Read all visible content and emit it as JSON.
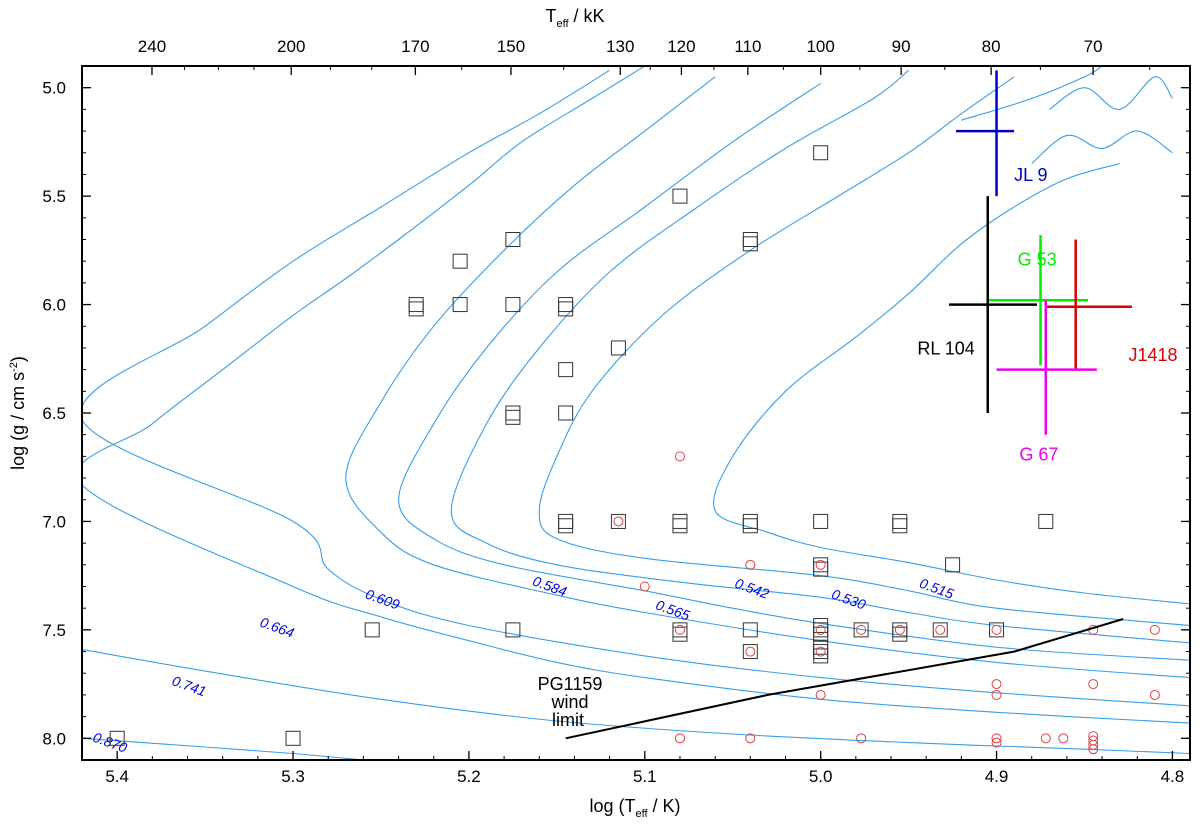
{
  "chart_data": {
    "type": "scatter",
    "title": "",
    "xlabel": "log (T",
    "xlabel_sub": "eff",
    "xlabel_tail": " / K)",
    "ylabel": "log (g / cm s",
    "ylabel_sup": "-2",
    "ylabel_tail": ")",
    "top_axis_label": "T",
    "top_axis_label_sub": "eff",
    "top_axis_label_tail": " / kK",
    "xlim": [
      5.42,
      4.79
    ],
    "ylim": [
      8.1,
      4.9
    ],
    "x_ticks": [
      5.4,
      5.3,
      5.2,
      5.1,
      5.0,
      4.9,
      4.8
    ],
    "x_tick_labels": [
      "5.4",
      "5.3",
      "5.2",
      "5.1",
      "5.0",
      "4.9",
      "4.8"
    ],
    "y_ticks": [
      5.0,
      5.5,
      6.0,
      6.5,
      7.0,
      7.5,
      8.0
    ],
    "y_tick_labels": [
      "5.0",
      "5.5",
      "6.0",
      "6.5",
      "7.0",
      "7.5",
      "8.0"
    ],
    "top_ticks_kK": [
      240,
      200,
      170,
      150,
      130,
      120,
      110,
      100,
      90,
      80,
      70
    ],
    "top_tick_labels": [
      "240",
      "200",
      "170",
      "150",
      "130",
      "120",
      "110",
      "100",
      "90",
      "80",
      "70"
    ],
    "track_color": "#3a9ee6",
    "tracks": [
      {
        "mass_label": "0.870",
        "label_at": [
          5.405,
          8.04
        ],
        "points": [
          [
            5.42,
            8.0
          ],
          [
            5.35,
            8.04
          ],
          [
            5.3,
            8.07
          ],
          [
            5.26,
            8.1
          ]
        ]
      },
      {
        "mass_label": "0.741",
        "label_at": [
          5.36,
          7.78
        ],
        "points": [
          [
            5.42,
            7.59
          ],
          [
            5.35,
            7.69
          ],
          [
            5.25,
            7.82
          ],
          [
            5.15,
            7.92
          ],
          [
            5.05,
            7.98
          ],
          [
            4.95,
            8.02
          ],
          [
            4.85,
            8.05
          ],
          [
            4.79,
            8.07
          ]
        ]
      },
      {
        "mass_label": "0.664",
        "label_at": [
          5.31,
          7.51
        ],
        "points": [
          [
            5.42,
            6.83
          ],
          [
            5.38,
            6.55
          ],
          [
            5.34,
            6.3
          ],
          [
            5.3,
            6.05
          ],
          [
            5.27,
            5.88
          ],
          [
            5.24,
            5.7
          ],
          [
            5.2,
            5.45
          ],
          [
            5.17,
            5.25
          ],
          [
            5.13,
            5.05
          ],
          [
            5.1,
            4.9
          ]
        ],
        "hook": [
          [
            5.34,
            7.1
          ],
          [
            5.3,
            7.3
          ],
          [
            5.25,
            7.44
          ],
          [
            5.2,
            7.55
          ],
          [
            5.15,
            7.65
          ],
          [
            5.1,
            7.72
          ],
          [
            5.0,
            7.82
          ],
          [
            4.9,
            7.88
          ],
          [
            4.79,
            7.93
          ]
        ]
      },
      {
        "mass_label": "0.609",
        "label_at": [
          5.25,
          7.38
        ],
        "points": [
          [
            5.42,
            6.53
          ],
          [
            5.35,
            6.1
          ],
          [
            5.3,
            5.8
          ],
          [
            5.25,
            5.55
          ],
          [
            5.2,
            5.3
          ],
          [
            5.16,
            5.12
          ],
          [
            5.12,
            4.92
          ]
        ],
        "hook": [
          [
            5.29,
            6.8
          ],
          [
            5.3,
            7.0
          ],
          [
            5.28,
            7.22
          ],
          [
            5.25,
            7.36
          ],
          [
            5.2,
            7.48
          ],
          [
            5.1,
            7.62
          ],
          [
            5.0,
            7.72
          ],
          [
            4.9,
            7.79
          ],
          [
            4.79,
            7.85
          ]
        ]
      },
      {
        "mass_label": "0.584",
        "label_at": [
          5.155,
          7.32
        ],
        "points": [
          [
            5.27,
            6.8
          ],
          [
            5.25,
            6.45
          ],
          [
            5.22,
            6.1
          ],
          [
            5.18,
            5.75
          ],
          [
            5.14,
            5.45
          ],
          [
            5.1,
            5.2
          ],
          [
            5.06,
            4.95
          ]
        ],
        "hook": [
          [
            5.27,
            6.8
          ],
          [
            5.25,
            7.05
          ],
          [
            5.22,
            7.2
          ],
          [
            5.15,
            7.34
          ],
          [
            5.1,
            7.42
          ],
          [
            5.0,
            7.55
          ],
          [
            4.9,
            7.65
          ],
          [
            4.79,
            7.72
          ]
        ]
      },
      {
        "mass_label": "0.565",
        "label_at": [
          5.085,
          7.43
        ],
        "points": [
          [
            5.24,
            6.9
          ],
          [
            5.22,
            6.55
          ],
          [
            5.19,
            6.2
          ],
          [
            5.15,
            5.85
          ],
          [
            5.1,
            5.55
          ],
          [
            5.05,
            5.25
          ],
          [
            5.0,
            4.98
          ]
        ],
        "hook": [
          [
            5.24,
            6.9
          ],
          [
            5.22,
            7.08
          ],
          [
            5.18,
            7.2
          ],
          [
            5.1,
            7.32
          ],
          [
            5.05,
            7.4
          ],
          [
            5.0,
            7.47
          ],
          [
            4.9,
            7.58
          ],
          [
            4.79,
            7.64
          ]
        ]
      },
      {
        "mass_label": "0.542",
        "label_at": [
          5.04,
          7.33
        ],
        "points": [
          [
            5.21,
            6.95
          ],
          [
            5.19,
            6.55
          ],
          [
            5.16,
            6.2
          ],
          [
            5.12,
            5.85
          ],
          [
            5.07,
            5.55
          ],
          [
            5.02,
            5.28
          ],
          [
            4.97,
            5.05
          ],
          [
            4.95,
            4.92
          ]
        ],
        "hook": [
          [
            5.21,
            6.95
          ],
          [
            5.19,
            7.1
          ],
          [
            5.15,
            7.2
          ],
          [
            5.08,
            7.28
          ],
          [
            5.0,
            7.35
          ],
          [
            4.95,
            7.42
          ],
          [
            4.9,
            7.48
          ],
          [
            4.79,
            7.56
          ]
        ]
      },
      {
        "mass_label": "0.530",
        "label_at": [
          4.985,
          7.38
        ],
        "points": [
          [
            5.16,
            6.95
          ],
          [
            5.15,
            6.7
          ],
          [
            5.13,
            6.4
          ],
          [
            5.09,
            6.05
          ],
          [
            5.04,
            5.75
          ],
          [
            4.99,
            5.5
          ],
          [
            4.95,
            5.3
          ],
          [
            4.92,
            5.12
          ],
          [
            4.89,
            4.95
          ]
        ],
        "hook": [
          [
            5.16,
            6.95
          ],
          [
            5.15,
            7.08
          ],
          [
            5.1,
            7.17
          ],
          [
            5.0,
            7.25
          ],
          [
            4.95,
            7.32
          ],
          [
            4.9,
            7.4
          ],
          [
            4.79,
            7.48
          ]
        ]
      },
      {
        "mass_label": "0.515",
        "label_at": [
          4.935,
          7.33
        ],
        "points": [
          [
            5.06,
            6.95
          ],
          [
            5.05,
            6.7
          ],
          [
            5.02,
            6.4
          ],
          [
            4.98,
            6.15
          ],
          [
            4.95,
            5.95
          ],
          [
            4.92,
            5.72
          ],
          [
            4.89,
            5.55
          ],
          [
            4.86,
            5.42
          ],
          [
            4.83,
            5.35
          ]
        ],
        "hook": [
          [
            5.06,
            6.95
          ],
          [
            5.03,
            7.05
          ],
          [
            5.0,
            7.12
          ],
          [
            4.95,
            7.19
          ],
          [
            4.9,
            7.27
          ],
          [
            4.85,
            7.33
          ],
          [
            4.79,
            7.38
          ]
        ]
      }
    ],
    "extra_tracks_upper_right": [
      [
        [
          4.92,
          5.15
        ],
        [
          4.88,
          5.05
        ],
        [
          4.85,
          4.95
        ],
        [
          4.84,
          4.9
        ]
      ],
      [
        [
          4.88,
          5.35
        ],
        [
          4.86,
          5.22
        ],
        [
          4.84,
          5.28
        ],
        [
          4.82,
          5.2
        ],
        [
          4.8,
          5.3
        ]
      ],
      [
        [
          4.87,
          5.1
        ],
        [
          4.85,
          5.0
        ],
        [
          4.83,
          5.1
        ],
        [
          4.81,
          4.95
        ],
        [
          4.8,
          5.05
        ]
      ]
    ],
    "series": [
      {
        "name": "squares",
        "marker": "square",
        "color": "#333333",
        "points": [
          [
            5.0,
            5.3
          ],
          [
            5.08,
            5.5
          ],
          [
            5.175,
            5.7
          ],
          [
            5.04,
            5.7
          ],
          [
            5.04,
            5.72
          ],
          [
            5.205,
            5.8
          ],
          [
            5.23,
            6.0
          ],
          [
            5.23,
            6.02
          ],
          [
            5.205,
            6.0
          ],
          [
            5.175,
            6.0
          ],
          [
            5.145,
            6.0
          ],
          [
            5.145,
            6.02
          ],
          [
            5.115,
            6.2
          ],
          [
            5.145,
            6.3
          ],
          [
            5.175,
            6.5
          ],
          [
            5.175,
            6.52
          ],
          [
            5.145,
            6.5
          ],
          [
            5.145,
            7.0
          ],
          [
            5.145,
            7.02
          ],
          [
            5.115,
            7.0
          ],
          [
            5.08,
            7.0
          ],
          [
            5.08,
            7.02
          ],
          [
            5.04,
            7.0
          ],
          [
            5.04,
            7.02
          ],
          [
            5.0,
            7.0
          ],
          [
            4.955,
            7.0
          ],
          [
            4.955,
            7.02
          ],
          [
            4.872,
            7.0
          ],
          [
            5.0,
            7.2
          ],
          [
            5.0,
            7.22
          ],
          [
            4.925,
            7.2
          ],
          [
            5.255,
            7.5
          ],
          [
            5.175,
            7.5
          ],
          [
            5.08,
            7.5
          ],
          [
            5.08,
            7.52
          ],
          [
            5.04,
            7.5
          ],
          [
            5.0,
            7.5
          ],
          [
            5.0,
            7.48
          ],
          [
            5.0,
            7.52
          ],
          [
            4.977,
            7.5
          ],
          [
            4.955,
            7.5
          ],
          [
            4.955,
            7.52
          ],
          [
            4.932,
            7.5
          ],
          [
            4.9,
            7.5
          ],
          [
            5.04,
            7.6
          ],
          [
            5.0,
            7.58
          ],
          [
            5.0,
            7.6
          ],
          [
            5.0,
            7.62
          ],
          [
            5.4,
            8.0
          ],
          [
            5.3,
            8.0
          ]
        ]
      },
      {
        "name": "circles",
        "marker": "circle",
        "color": "#e04040",
        "points": [
          [
            5.08,
            6.7
          ],
          [
            5.115,
            7.0
          ],
          [
            5.04,
            7.2
          ],
          [
            5.0,
            7.2
          ],
          [
            5.1,
            7.3
          ],
          [
            5.08,
            7.5
          ],
          [
            5.0,
            7.5
          ],
          [
            4.977,
            7.5
          ],
          [
            4.955,
            7.5
          ],
          [
            4.932,
            7.5
          ],
          [
            4.9,
            7.5
          ],
          [
            4.845,
            7.5
          ],
          [
            4.81,
            7.5
          ],
          [
            5.04,
            7.6
          ],
          [
            5.0,
            7.6
          ],
          [
            4.9,
            7.75
          ],
          [
            4.845,
            7.75
          ],
          [
            5.0,
            7.8
          ],
          [
            4.9,
            7.8
          ],
          [
            4.81,
            7.8
          ],
          [
            5.08,
            8.0
          ],
          [
            5.04,
            8.0
          ],
          [
            4.977,
            8.0
          ],
          [
            4.9,
            8.0
          ],
          [
            4.9,
            8.02
          ],
          [
            4.872,
            8.0
          ],
          [
            4.862,
            8.0
          ],
          [
            4.845,
            7.99
          ],
          [
            4.845,
            8.01
          ],
          [
            4.845,
            8.03
          ],
          [
            4.845,
            8.05
          ]
        ]
      }
    ],
    "error_crosses": [
      {
        "name": "JL 9",
        "color": "#0000cc",
        "x": 4.9,
        "y": 5.2,
        "x_err": [
          4.923,
          4.89
        ],
        "y_err": [
          4.92,
          5.5
        ],
        "label_at": [
          4.89,
          5.43
        ]
      },
      {
        "name": "G 53",
        "color": "#00ee00",
        "x": 4.875,
        "y": 5.98,
        "x_err": [
          4.905,
          4.848
        ],
        "y_err": [
          5.68,
          6.28
        ],
        "label_at": [
          4.888,
          5.82
        ]
      },
      {
        "name": "RL 104",
        "color": "#000000",
        "x": 4.905,
        "y": 6.0,
        "x_err": [
          4.927,
          4.877
        ],
        "y_err": [
          5.5,
          6.5
        ],
        "label_at": [
          4.945,
          6.23
        ]
      },
      {
        "name": "J1418",
        "color": "#dd0000",
        "x": 4.855,
        "y": 6.01,
        "x_err": [
          4.872,
          4.823
        ],
        "y_err": [
          5.7,
          6.3
        ],
        "label_at": [
          4.825,
          6.26
        ]
      },
      {
        "name": "G 67",
        "color": "#ee00ee",
        "x": 4.872,
        "y": 6.3,
        "x_err": [
          4.9,
          4.843
        ],
        "y_err": [
          5.98,
          6.6
        ],
        "label_at": [
          4.887,
          6.72
        ]
      }
    ],
    "wind_limit": {
      "label_lines": [
        "PG1159",
        "wind",
        "limit"
      ],
      "color": "#000000",
      "points": [
        [
          5.145,
          8.0
        ],
        [
          5.03,
          7.8
        ],
        [
          4.89,
          7.6
        ],
        [
          4.828,
          7.45
        ]
      ]
    }
  }
}
